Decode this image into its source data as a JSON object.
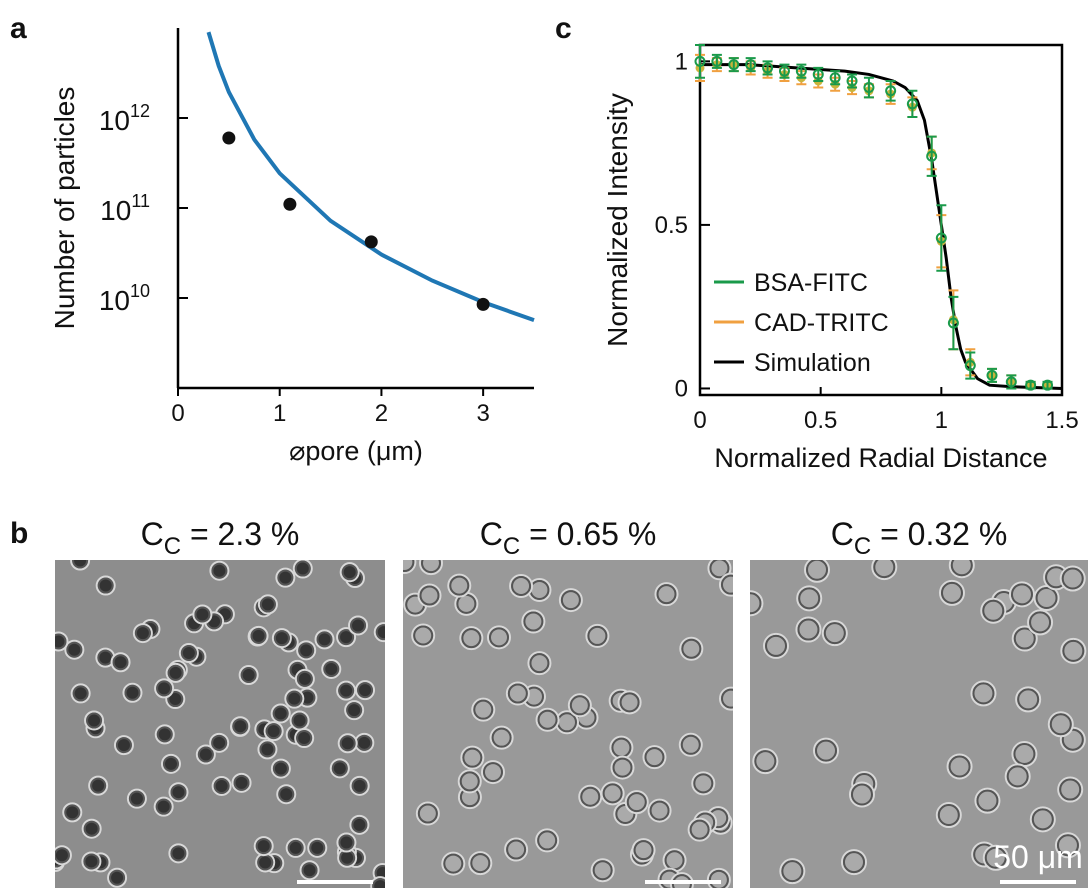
{
  "panels": {
    "a": "a",
    "b": "b",
    "c": "c"
  },
  "chart_data": [
    {
      "type": "line",
      "y_label": "Number of particles",
      "x_label": "⌀pore (μm)",
      "log_y": true,
      "xlim": [
        0,
        3.5
      ],
      "xticks": [
        0,
        1,
        2,
        3
      ],
      "ylim": [
        1000000000.0,
        10000000000000.0
      ],
      "yticks": [
        {
          "value": 10000000000.0,
          "label": "10",
          "sup": "10"
        },
        {
          "value": 100000000000.0,
          "label": "10",
          "sup": "11"
        },
        {
          "value": 1000000000000.0,
          "label": "10",
          "sup": "12"
        }
      ],
      "series": [
        {
          "type": "line",
          "color": "#1f77b4",
          "x": [
            0.3,
            0.4,
            0.5,
            0.75,
            1,
            1.5,
            2,
            2.5,
            3,
            3.5
          ],
          "values": [
            9000000000000.0,
            3800000000000.0,
            1940000000000.0,
            576000000000.0,
            243000000000.0,
            72000000000.0,
            30400000000.0,
            15600000000.0,
            9000000000.0,
            5670000000.0
          ]
        },
        {
          "type": "scatter",
          "color": "#111111",
          "x": [
            0.5,
            1.1,
            1.9,
            3.0
          ],
          "values": [
            600000000000.0,
            110000000000.0,
            42000000000.0,
            8500000000.0
          ]
        }
      ]
    },
    {
      "type": "line",
      "y_label": "Normalized Intensity",
      "x_label": "Normalized Radial Distance",
      "xlim": [
        0,
        1.5
      ],
      "xticks": [
        0,
        0.5,
        1,
        1.5
      ],
      "ylim": [
        -0.02,
        1.05
      ],
      "yticks": [
        0,
        0.5,
        1
      ],
      "legend": "lower left",
      "series": [
        {
          "name": "BSA-FITC",
          "type": "errorbar",
          "color": "#1a9a4a",
          "x": [
            0,
            0.07,
            0.14,
            0.21,
            0.28,
            0.35,
            0.42,
            0.49,
            0.56,
            0.63,
            0.7,
            0.79,
            0.88,
            0.96,
            1.0,
            1.05,
            1.12,
            1.21,
            1.29,
            1.37,
            1.44
          ],
          "values": [
            1,
            1,
            0.99,
            0.99,
            0.98,
            0.97,
            0.97,
            0.96,
            0.95,
            0.94,
            0.92,
            0.91,
            0.87,
            0.71,
            0.46,
            0.2,
            0.07,
            0.04,
            0.02,
            0.01,
            0.01
          ],
          "errors": [
            0.05,
            0.02,
            0.02,
            0.02,
            0.02,
            0.02,
            0.02,
            0.02,
            0.02,
            0.02,
            0.03,
            0.03,
            0.04,
            0.06,
            0.1,
            0.08,
            0.04,
            0.02,
            0.02,
            0.01,
            0.01
          ]
        },
        {
          "name": "CAD-TRITC",
          "type": "errorbar",
          "color": "#f0a040",
          "x": [
            0,
            0.07,
            0.14,
            0.21,
            0.28,
            0.35,
            0.42,
            0.49,
            0.56,
            0.63,
            0.7,
            0.79,
            0.88,
            0.96,
            1.0,
            1.05,
            1.12,
            1.21,
            1.29,
            1.37,
            1.44
          ],
          "values": [
            0.98,
            0.99,
            0.99,
            0.98,
            0.97,
            0.96,
            0.95,
            0.94,
            0.93,
            0.92,
            0.91,
            0.9,
            0.86,
            0.72,
            0.45,
            0.21,
            0.08,
            0.04,
            0.02,
            0.01,
            0.01
          ],
          "errors": [
            0.04,
            0.02,
            0.02,
            0.02,
            0.02,
            0.02,
            0.02,
            0.02,
            0.02,
            0.02,
            0.02,
            0.03,
            0.03,
            0.05,
            0.08,
            0.09,
            0.04,
            0.02,
            0.02,
            0.01,
            0.01
          ]
        },
        {
          "name": "Simulation",
          "type": "line",
          "color": "#000000",
          "x": [
            0,
            0.2,
            0.4,
            0.6,
            0.7,
            0.8,
            0.85,
            0.9,
            0.93,
            0.96,
            0.98,
            1.0,
            1.02,
            1.04,
            1.06,
            1.08,
            1.1,
            1.15,
            1.2,
            1.3,
            1.5
          ],
          "values": [
            0.99,
            0.99,
            0.98,
            0.97,
            0.96,
            0.94,
            0.92,
            0.88,
            0.82,
            0.7,
            0.6,
            0.5,
            0.4,
            0.28,
            0.19,
            0.12,
            0.08,
            0.03,
            0.01,
            0.005,
            0
          ]
        }
      ]
    }
  ],
  "images": [
    {
      "title": "C",
      "sub": "C",
      "rest": " = 2.3 %"
    },
    {
      "title": "C",
      "sub": "C",
      "rest": " = 0.65 %"
    },
    {
      "title": "C",
      "sub": "C",
      "rest": " = 0.32 %",
      "scale_label": "50 μm"
    }
  ]
}
